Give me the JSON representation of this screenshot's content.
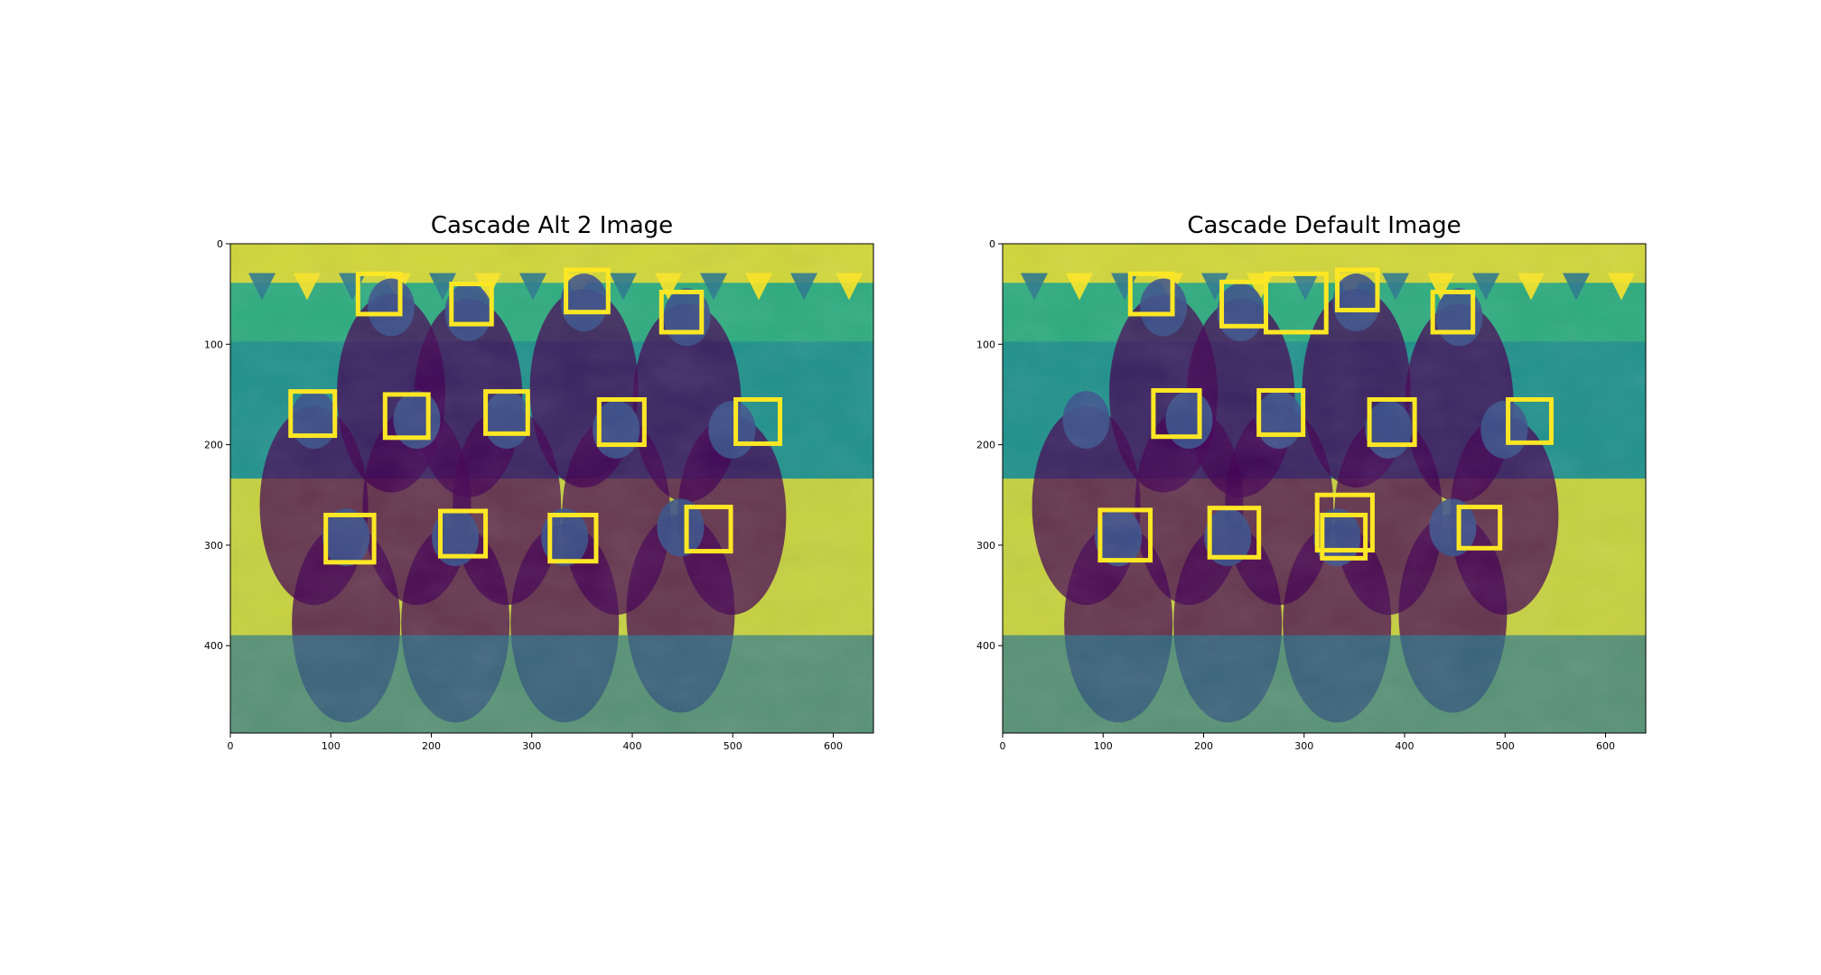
{
  "figure_title": "",
  "colors": {
    "cmap_low": "#440154",
    "cmap_mid": "#21918c",
    "cmap_high": "#fde725",
    "box": "#fde725"
  },
  "chart_data": [
    {
      "type": "image",
      "title": "Cascade Alt 2 Image",
      "xlabel": "",
      "ylabel": "",
      "xlim": [
        0,
        640
      ],
      "ylim": [
        487,
        0
      ],
      "xticks": [
        0,
        100,
        200,
        300,
        400,
        500,
        600
      ],
      "yticks": [
        0,
        100,
        200,
        300,
        400
      ],
      "detections": [
        {
          "x": 127,
          "y": 30,
          "w": 42,
          "h": 40
        },
        {
          "x": 220,
          "y": 40,
          "w": 40,
          "h": 40
        },
        {
          "x": 334,
          "y": 26,
          "w": 42,
          "h": 42
        },
        {
          "x": 429,
          "y": 48,
          "w": 40,
          "h": 40
        },
        {
          "x": 60,
          "y": 147,
          "w": 44,
          "h": 44
        },
        {
          "x": 154,
          "y": 150,
          "w": 43,
          "h": 43
        },
        {
          "x": 254,
          "y": 147,
          "w": 42,
          "h": 42
        },
        {
          "x": 367,
          "y": 155,
          "w": 45,
          "h": 45
        },
        {
          "x": 503,
          "y": 155,
          "w": 44,
          "h": 44
        },
        {
          "x": 95,
          "y": 270,
          "w": 48,
          "h": 47
        },
        {
          "x": 209,
          "y": 266,
          "w": 45,
          "h": 45
        },
        {
          "x": 318,
          "y": 270,
          "w": 46,
          "h": 46
        },
        {
          "x": 454,
          "y": 262,
          "w": 44,
          "h": 44
        }
      ]
    },
    {
      "type": "image",
      "title": "Cascade Default Image",
      "xlabel": "",
      "ylabel": "",
      "xlim": [
        0,
        640
      ],
      "ylim": [
        487,
        0
      ],
      "xticks": [
        0,
        100,
        200,
        300,
        400,
        500,
        600
      ],
      "yticks": [
        0,
        100,
        200,
        300,
        400
      ],
      "detections": [
        {
          "x": 127,
          "y": 30,
          "w": 42,
          "h": 40
        },
        {
          "x": 218,
          "y": 38,
          "w": 44,
          "h": 44
        },
        {
          "x": 262,
          "y": 30,
          "w": 60,
          "h": 58
        },
        {
          "x": 333,
          "y": 26,
          "w": 40,
          "h": 40
        },
        {
          "x": 428,
          "y": 48,
          "w": 40,
          "h": 40
        },
        {
          "x": 150,
          "y": 146,
          "w": 46,
          "h": 46
        },
        {
          "x": 255,
          "y": 146,
          "w": 44,
          "h": 44
        },
        {
          "x": 365,
          "y": 155,
          "w": 45,
          "h": 45
        },
        {
          "x": 503,
          "y": 155,
          "w": 43,
          "h": 43
        },
        {
          "x": 97,
          "y": 265,
          "w": 50,
          "h": 50
        },
        {
          "x": 206,
          "y": 263,
          "w": 49,
          "h": 49
        },
        {
          "x": 313,
          "y": 250,
          "w": 55,
          "h": 55
        },
        {
          "x": 318,
          "y": 270,
          "w": 43,
          "h": 43
        },
        {
          "x": 454,
          "y": 262,
          "w": 41,
          "h": 41
        }
      ]
    }
  ]
}
